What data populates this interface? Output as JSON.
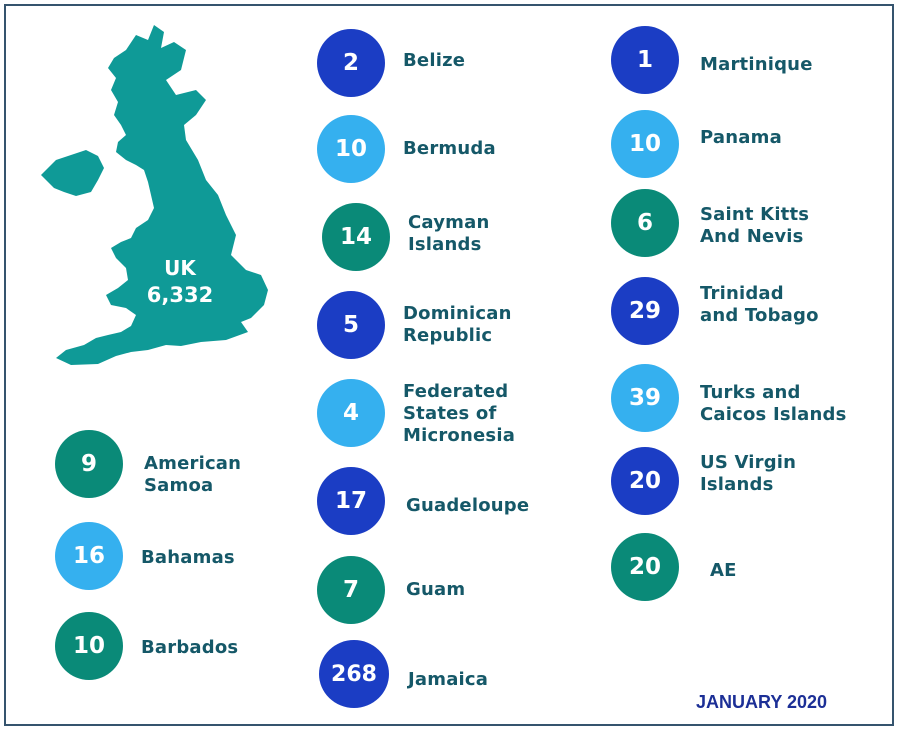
{
  "colors": {
    "dark_blue": "#1b3dc4",
    "light_blue": "#35b0ef",
    "teal_green": "#0a8a78",
    "map_teal": "#0f9a97",
    "label_text": "#155868",
    "date_text": "#1c2f96",
    "frame": "#35546e"
  },
  "uk": {
    "name": "UK",
    "value": "6,332",
    "icon": "uk-map-icon"
  },
  "left_column": [
    {
      "value": "9",
      "label": "American\nSamoa",
      "color": "teal_green"
    },
    {
      "value": "16",
      "label": "Bahamas",
      "color": "light_blue"
    },
    {
      "value": "10",
      "label": "Barbados",
      "color": "teal_green"
    }
  ],
  "middle_column": [
    {
      "value": "2",
      "label": "Belize",
      "color": "dark_blue"
    },
    {
      "value": "10",
      "label": "Bermuda",
      "color": "light_blue"
    },
    {
      "value": "14",
      "label": "Cayman\nIslands",
      "color": "teal_green"
    },
    {
      "value": "5",
      "label": "Dominican\nRepublic",
      "color": "dark_blue"
    },
    {
      "value": "4",
      "label": "Federated\nStates of\nMicronesia",
      "color": "light_blue"
    },
    {
      "value": "17",
      "label": "Guadeloupe",
      "color": "dark_blue"
    },
    {
      "value": "7",
      "label": "Guam",
      "color": "teal_green"
    },
    {
      "value": "268",
      "label": "Jamaica",
      "color": "dark_blue"
    }
  ],
  "right_column": [
    {
      "value": "1",
      "label": "Martinique",
      "color": "dark_blue"
    },
    {
      "value": "10",
      "label": "Panama",
      "color": "light_blue"
    },
    {
      "value": "6",
      "label": "Saint Kitts\nAnd Nevis",
      "color": "teal_green"
    },
    {
      "value": "29",
      "label": "Trinidad\nand Tobago",
      "color": "dark_blue"
    },
    {
      "value": "39",
      "label": "Turks and\nCaicos Islands",
      "color": "light_blue"
    },
    {
      "value": "20",
      "label": "US Virgin\nIslands",
      "color": "dark_blue"
    },
    {
      "value": "20",
      "label": "AE",
      "color": "teal_green"
    }
  ],
  "footer": {
    "date": "JANUARY 2020"
  }
}
